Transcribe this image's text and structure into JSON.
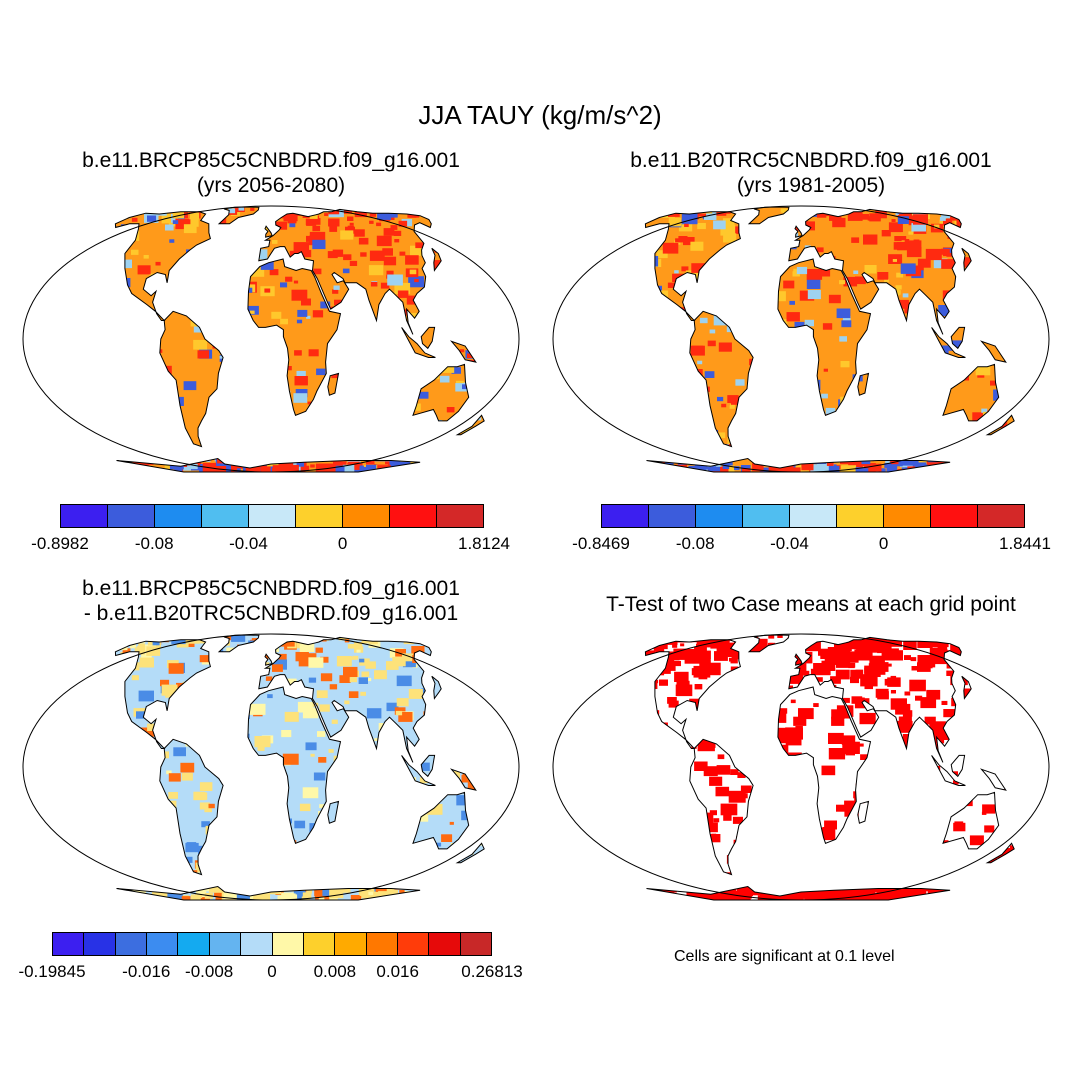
{
  "title": "JJA TAUY (kg/m/s^2)",
  "panels": {
    "p1": {
      "line1": "b.e11.BRCP85C5CNBDRD.f09_g16.001",
      "line2": "(yrs 2056-2080)"
    },
    "p2": {
      "line1": "b.e11.B20TRC5CNBDRD.f09_g16.001",
      "line2": "(yrs 1981-2005)"
    },
    "p3": {
      "line1": "b.e11.BRCP85C5CNBDRD.f09_g16.001",
      "line2": "- b.e11.B20TRC5CNBDRD.f09_g16.001"
    },
    "p4": {
      "line1": "T-Test of two Case means at each grid point"
    }
  },
  "colorbars": {
    "cb1": {
      "colors": [
        "#3c1ff0",
        "#3c5cdc",
        "#1e8cf0",
        "#50bef0",
        "#c8e8f8",
        "#fdd02c",
        "#ff8a00",
        "#ff1010",
        "#d42828"
      ],
      "labels": [
        "-0.8982",
        "-0.08",
        "-0.04",
        "0",
        "1.8124"
      ]
    },
    "cb2": {
      "colors": [
        "#3c1ff0",
        "#3c5cdc",
        "#1e8cf0",
        "#50bef0",
        "#c8e8f8",
        "#fdd02c",
        "#ff8a00",
        "#ff1010",
        "#d42828"
      ],
      "labels": [
        "-0.8469",
        "-0.08",
        "-0.04",
        "0",
        "1.8441"
      ]
    },
    "cb3": {
      "colors": [
        "#3c1ff0",
        "#2832e6",
        "#3c6ee0",
        "#3c8cf0",
        "#14aaf0",
        "#64b4f0",
        "#b4dcf8",
        "#fff8a8",
        "#fdd02c",
        "#ffaa00",
        "#ff7800",
        "#ff3c0a",
        "#e60a0a",
        "#c82828"
      ],
      "labels": [
        "-0.19845",
        "-0.016",
        "-0.008",
        "0",
        "0.008",
        "0.016",
        "0.26813"
      ]
    }
  },
  "ttest_note": "Cells are significant at 0.1 level",
  "map_colors": {
    "p1_land": "#ff9a1a",
    "p1_hot": "#ff2a10",
    "p1_cool": "#9ed2f0",
    "p1_cold": "#3c5cdc",
    "p3_land": "#b4dcf8",
    "p3_warm": "#fde27a",
    "p3_hot": "#ff6a10",
    "p3_cold": "#4a8ce6",
    "p4_sig": "#ff0000"
  }
}
